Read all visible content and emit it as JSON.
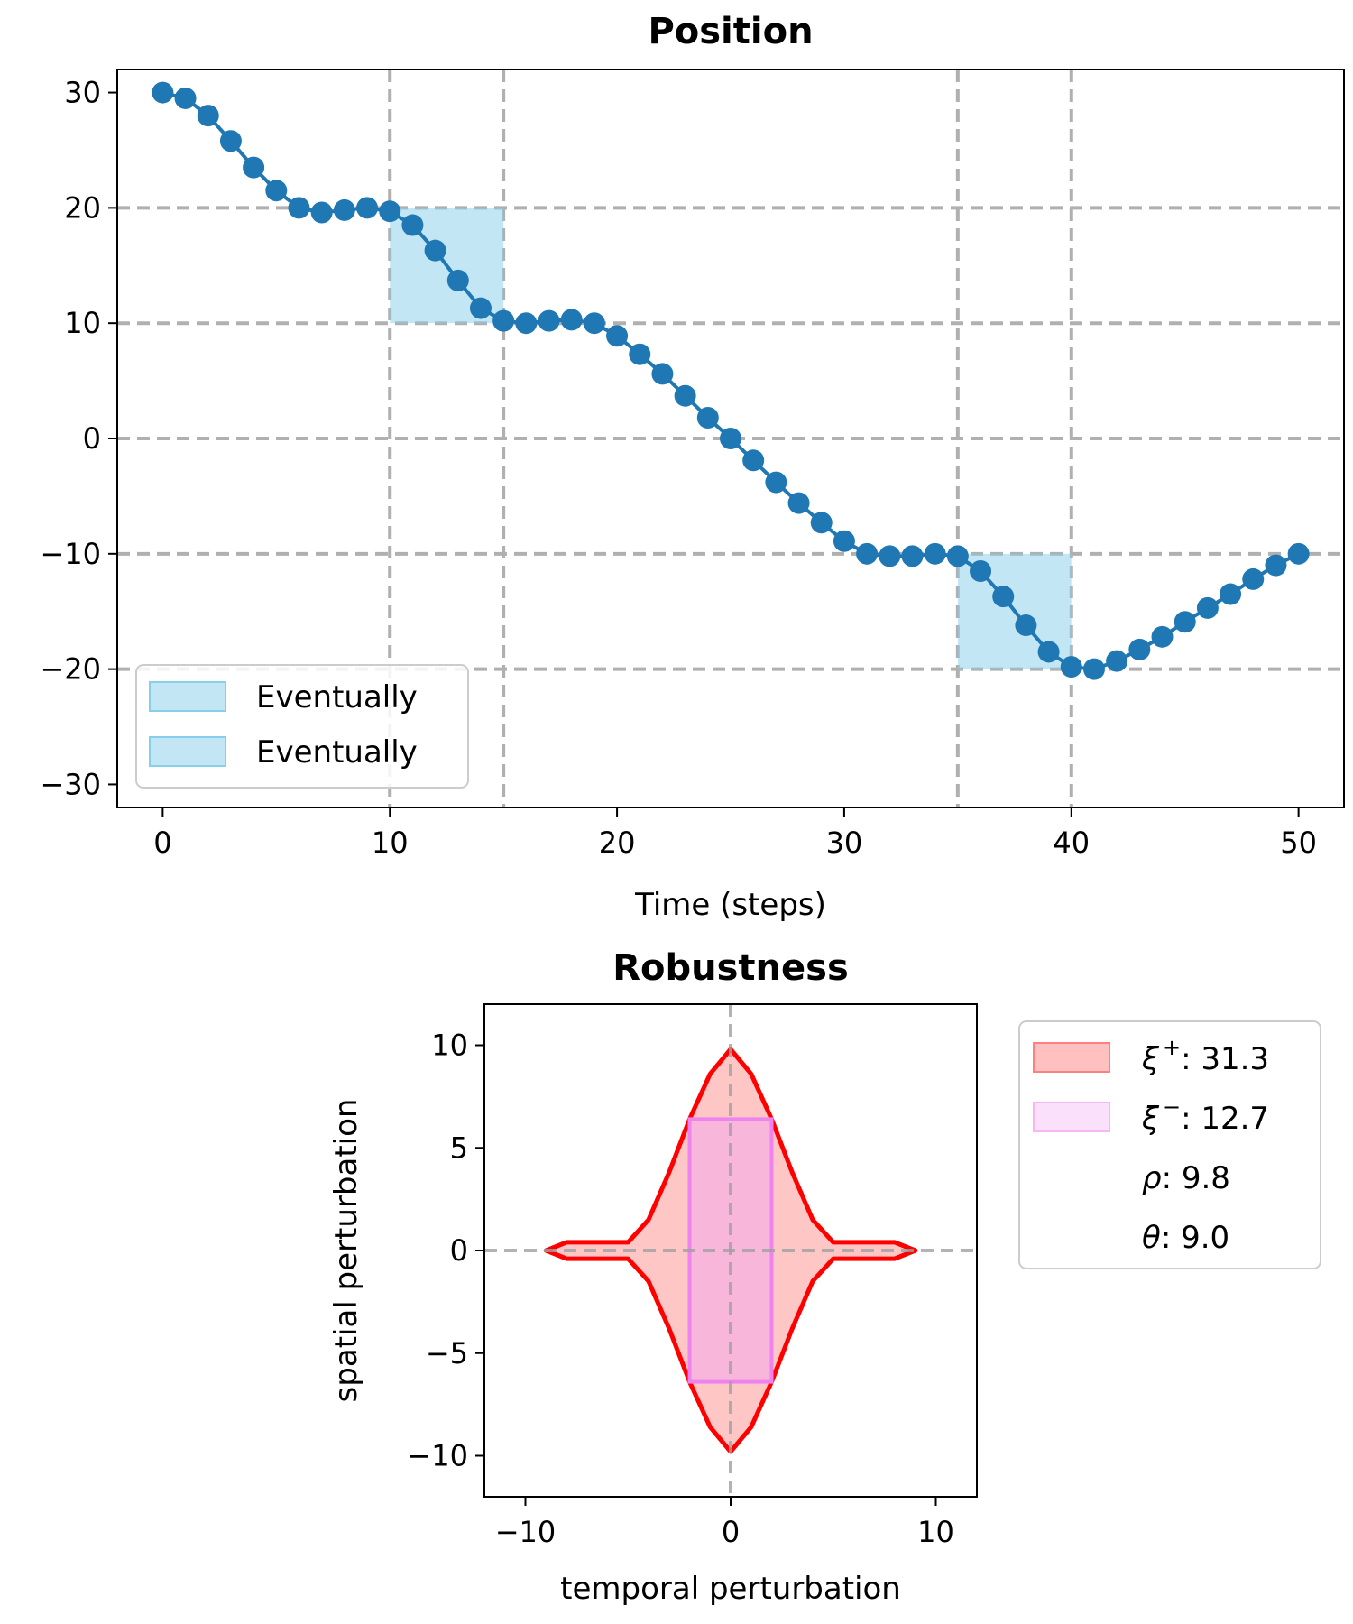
{
  "chart_data": [
    {
      "type": "line",
      "title": "Position",
      "xlabel": "Time (steps)",
      "ylabel": "",
      "xlim": [
        -2,
        52
      ],
      "ylim": [
        -32,
        32
      ],
      "xticks": [
        0,
        10,
        20,
        30,
        40,
        50
      ],
      "yticks": [
        30,
        20,
        10,
        0,
        -10,
        -20,
        -30
      ],
      "xtick_labels": [
        "0",
        "10",
        "20",
        "30",
        "40",
        "50"
      ],
      "ytick_labels": [
        "30",
        "20",
        "10",
        "0",
        "−10",
        "−20",
        "−30"
      ],
      "grid": true,
      "legend_position": "lower-left",
      "series": [
        {
          "color": "#1f77b4",
          "marker": "circle",
          "x": [
            0,
            1,
            2,
            3,
            4,
            5,
            6,
            7,
            8,
            9,
            10,
            11,
            12,
            13,
            14,
            15,
            16,
            17,
            18,
            19,
            20,
            21,
            22,
            23,
            24,
            25,
            26,
            27,
            28,
            29,
            30,
            31,
            32,
            33,
            34,
            35,
            36,
            37,
            38,
            39,
            40,
            41,
            42,
            43,
            44,
            45,
            46,
            47,
            48,
            49,
            50
          ],
          "y": [
            30,
            29.5,
            28,
            25.8,
            23.5,
            21.5,
            20,
            19.6,
            19.8,
            20,
            19.7,
            18.5,
            16.3,
            13.7,
            11.3,
            10.2,
            10,
            10.2,
            10.3,
            10,
            8.9,
            7.3,
            5.6,
            3.7,
            1.8,
            0,
            -1.9,
            -3.8,
            -5.6,
            -7.3,
            -8.9,
            -10,
            -10.2,
            -10.2,
            -10,
            -10.2,
            -11.5,
            -13.7,
            -16.2,
            -18.5,
            -19.8,
            -20,
            -19.3,
            -18.3,
            -17.2,
            -15.9,
            -14.7,
            -13.5,
            -12.2,
            -11,
            -10
          ]
        }
      ],
      "shaded_regions": [
        {
          "label": "Eventually",
          "x": [
            10,
            15
          ],
          "y": [
            10,
            20
          ],
          "color": "#87ceeb"
        },
        {
          "label": "Eventually",
          "x": [
            35,
            40
          ],
          "y": [
            -20,
            -10
          ],
          "color": "#87ceeb"
        }
      ],
      "vlines": [
        10,
        15,
        35,
        40
      ],
      "hlines": [
        20,
        10,
        0,
        -10,
        -20
      ],
      "legend": [
        "Eventually",
        "Eventually"
      ]
    },
    {
      "type": "area",
      "title": "Robustness",
      "xlabel": "temporal perturbation",
      "ylabel": "spatial perturbation",
      "xlim": [
        -12,
        12
      ],
      "ylim": [
        -12,
        12
      ],
      "xticks": [
        -10,
        0,
        10
      ],
      "yticks": [
        10,
        5,
        0,
        -5,
        -10
      ],
      "xtick_labels": [
        "−10",
        "0",
        "10"
      ],
      "ytick_labels": [
        "10",
        "5",
        "0",
        "−5",
        "−10"
      ],
      "hlines": [
        0
      ],
      "vlines": [
        0
      ],
      "legend_position": "outside-right",
      "outer_region": {
        "color": "#ff0000",
        "fill": "#ffc0c0",
        "x": [
          -9,
          -8,
          -5,
          -4,
          -3,
          -2,
          -1,
          0,
          1,
          2,
          3,
          4,
          5,
          8,
          9
        ],
        "upper": [
          0,
          0.4,
          0.4,
          1.5,
          3.8,
          6.4,
          8.6,
          9.8,
          8.6,
          6.4,
          3.8,
          1.5,
          0.4,
          0.4,
          0
        ],
        "lower": [
          0,
          -0.4,
          -0.4,
          -1.5,
          -3.8,
          -6.4,
          -8.6,
          -9.8,
          -8.6,
          -6.4,
          -3.8,
          -1.5,
          -0.4,
          -0.4,
          0
        ]
      },
      "inner_region": {
        "color": "#ee82ee",
        "fill": "#f5b0e0",
        "x": [
          -2,
          2
        ],
        "y": [
          -6.4,
          6.4
        ]
      },
      "legend": {
        "xi_plus": {
          "symbol": "ξ",
          "sup": "+",
          "value": ": 31.3"
        },
        "xi_minus": {
          "symbol": "ξ",
          "sup": "−",
          "value": ": 12.7"
        },
        "rho": {
          "symbol": "ρ",
          "value": ": 9.8"
        },
        "theta": {
          "symbol": "θ",
          "value": ": 9.0"
        }
      }
    }
  ]
}
